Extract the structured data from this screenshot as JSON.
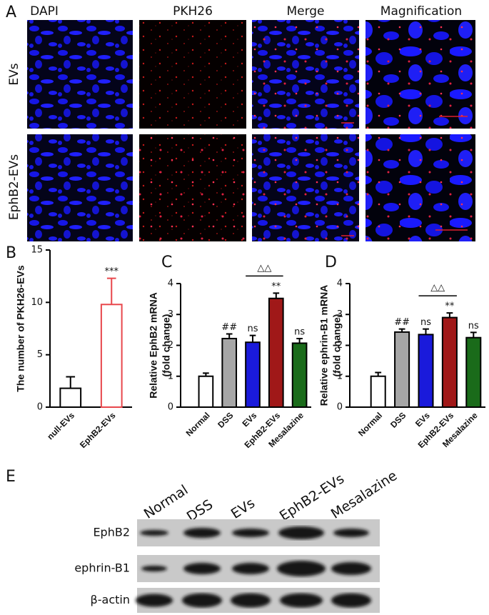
{
  "panel_a": {
    "label": "A",
    "columns": [
      "DAPI",
      "PKH26",
      "Merge",
      "Magnification"
    ],
    "rows": [
      "EVs",
      "EphB2-EVs"
    ]
  },
  "chart_data": [
    {
      "type": "bar",
      "label": "B",
      "y_label": [
        "The number of PKH26-EVs"
      ],
      "categories": [
        "null-EVs",
        "EphB2-EVs"
      ],
      "values": [
        1.8,
        9.8
      ],
      "errors": [
        1.1,
        2.5
      ],
      "fills": [
        "#ffffff",
        "#ffffff"
      ],
      "strokes": [
        "#000000",
        "#e8474c"
      ],
      "value_annotations": [
        null,
        "***"
      ],
      "bracket_label": null,
      "ylim": [
        0,
        15
      ],
      "yticks": [
        0,
        5,
        10,
        15
      ]
    },
    {
      "type": "bar",
      "label": "C",
      "y_label": [
        "Relative EphB2 mRNA",
        "(fold change)"
      ],
      "categories": [
        "Normal",
        "DSS",
        "EVs",
        "EphB2-EVs",
        "Mesalazine"
      ],
      "values": [
        1.0,
        2.22,
        2.1,
        3.52,
        2.07
      ],
      "errors": [
        0.1,
        0.15,
        0.22,
        0.17,
        0.15
      ],
      "fills": [
        "#ffffff",
        "#a6a6a6",
        "#1a1adb",
        "#a01818",
        "#1a6b1a"
      ],
      "strokes": [
        "#000000",
        "#000000",
        "#000000",
        "#000000",
        "#000000"
      ],
      "value_annotations": [
        null,
        "##",
        "ns",
        "**",
        "ns"
      ],
      "bracket_label": "△△",
      "ylim": [
        0,
        4
      ],
      "yticks": [
        0,
        1,
        2,
        3,
        4
      ]
    },
    {
      "type": "bar",
      "label": "D",
      "y_label": [
        "Relative ephrin-B1 mRNA",
        "(fold change)"
      ],
      "categories": [
        "Normal",
        "DSS",
        "EVs",
        "EphB2-EVs",
        "Mesalazine"
      ],
      "values": [
        1.0,
        2.43,
        2.35,
        2.9,
        2.25
      ],
      "errors": [
        0.12,
        0.1,
        0.18,
        0.15,
        0.17
      ],
      "fills": [
        "#ffffff",
        "#a6a6a6",
        "#1a1adb",
        "#a01818",
        "#1a6b1a"
      ],
      "strokes": [
        "#000000",
        "#000000",
        "#000000",
        "#000000",
        "#000000"
      ],
      "value_annotations": [
        null,
        "##",
        "ns",
        "**",
        "ns"
      ],
      "bracket_label": "△△",
      "ylim": [
        0,
        4
      ],
      "yticks": [
        0,
        1,
        2,
        3,
        4
      ]
    }
  ],
  "panel_e": {
    "label": "E",
    "lanes": [
      "Normal",
      "DSS",
      "EVs",
      "EphB2-EVs",
      "Mesalazine"
    ],
    "rows": [
      "EphB2",
      "ephrin-B1",
      "β-actin"
    ]
  }
}
